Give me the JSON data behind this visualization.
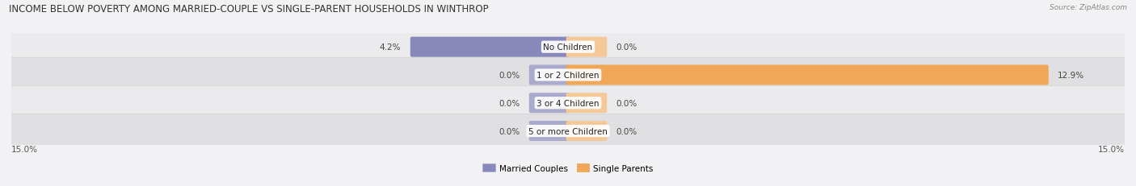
{
  "title": "INCOME BELOW POVERTY AMONG MARRIED-COUPLE VS SINGLE-PARENT HOUSEHOLDS IN WINTHROP",
  "source": "Source: ZipAtlas.com",
  "categories": [
    "No Children",
    "1 or 2 Children",
    "3 or 4 Children",
    "5 or more Children"
  ],
  "married_values": [
    4.2,
    0.0,
    0.0,
    0.0
  ],
  "single_values": [
    0.0,
    12.9,
    0.0,
    0.0
  ],
  "max_val": 15.0,
  "married_color": "#8888bb",
  "single_color": "#f0a858",
  "married_stub_color": "#aaaacc",
  "single_stub_color": "#f5c898",
  "row_bg_even": "#ebebed",
  "row_bg_odd": "#e0e0e3",
  "fig_bg": "#f2f2f4",
  "legend_married": "Married Couples",
  "legend_single": "Single Parents",
  "axis_label": "15.0%",
  "title_fontsize": 8.5,
  "label_fontsize": 7.5,
  "category_fontsize": 7.5,
  "figsize": [
    14.06,
    2.32
  ],
  "dpi": 100
}
